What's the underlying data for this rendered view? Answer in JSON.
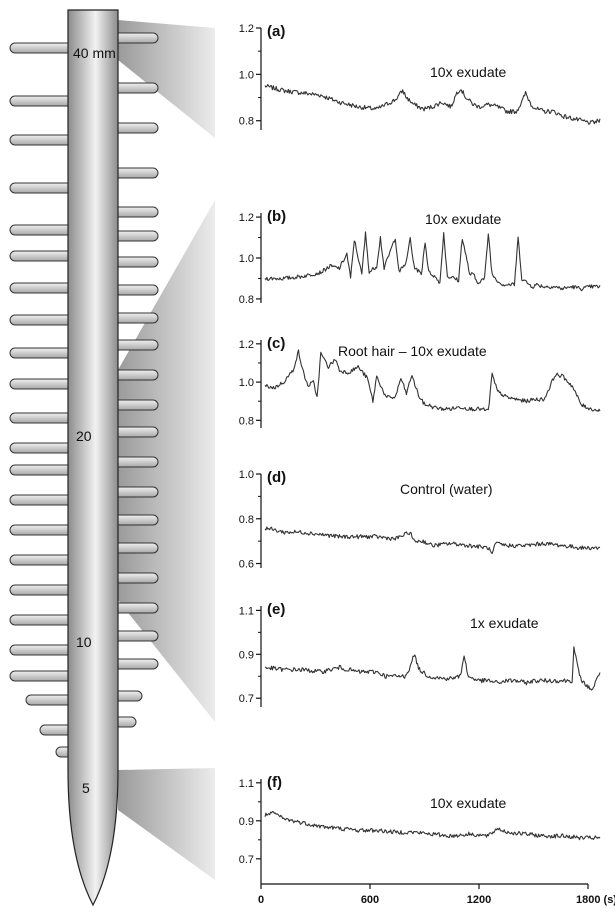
{
  "root_figure": {
    "position_labels": [
      "40 mm",
      "20",
      "10",
      "5"
    ],
    "colors": {
      "root_fill_dark": "#8c8c8c",
      "root_fill_light": "#f2f2f2",
      "wedge": "#c8c8c8",
      "trace": "#333333"
    }
  },
  "chart_data": [
    {
      "type": "line",
      "panel": "(a)",
      "annotation": "10x exudate",
      "xlim": [
        0,
        1800
      ],
      "ylim": [
        0.76,
        1.2
      ],
      "yticks": [
        "1.2",
        "1.0",
        "0.8"
      ],
      "ytick_values": [
        1.2,
        1.0,
        0.8
      ],
      "series": [
        {
          "x": [
            0,
            100,
            200,
            300,
            400,
            500,
            600,
            650,
            700,
            740,
            760,
            800,
            850,
            900,
            950,
            1000,
            1030,
            1050,
            1080,
            1120,
            1150,
            1200,
            1250,
            1300,
            1350,
            1380,
            1400,
            1430,
            1460,
            1500,
            1550,
            1600,
            1650,
            1700,
            1750,
            1800
          ],
          "y": [
            0.95,
            0.93,
            0.92,
            0.91,
            0.88,
            0.86,
            0.85,
            0.87,
            0.89,
            0.93,
            0.9,
            0.87,
            0.85,
            0.86,
            0.88,
            0.86,
            0.92,
            0.94,
            0.9,
            0.87,
            0.86,
            0.87,
            0.86,
            0.84,
            0.84,
            0.88,
            0.92,
            0.87,
            0.85,
            0.84,
            0.84,
            0.82,
            0.81,
            0.8,
            0.79,
            0.8
          ]
        }
      ]
    },
    {
      "type": "line",
      "panel": "(b)",
      "annotation": "10x exudate",
      "xlim": [
        0,
        1800
      ],
      "ylim": [
        0.78,
        1.22
      ],
      "yticks": [
        "1.2",
        "1.0",
        "0.8"
      ],
      "ytick_values": [
        1.2,
        1.0,
        0.8
      ],
      "series": [
        {
          "x": [
            0,
            100,
            200,
            300,
            350,
            400,
            440,
            460,
            480,
            520,
            540,
            560,
            600,
            620,
            640,
            680,
            700,
            720,
            760,
            780,
            800,
            840,
            860,
            880,
            900,
            940,
            960,
            980,
            1020,
            1040,
            1060,
            1100,
            1120,
            1140,
            1180,
            1200,
            1220,
            1260,
            1280,
            1300,
            1340,
            1360,
            1380,
            1420,
            1440,
            1460,
            1500,
            1550,
            1600,
            1650,
            1700,
            1750,
            1800
          ],
          "y": [
            0.9,
            0.9,
            0.91,
            0.93,
            0.96,
            0.95,
            1.02,
            0.9,
            1.09,
            0.92,
            1.12,
            0.93,
            0.96,
            1.1,
            0.95,
            1.05,
            1.1,
            0.93,
            0.98,
            1.1,
            0.96,
            0.92,
            1.08,
            0.93,
            0.92,
            0.88,
            1.12,
            0.91,
            0.9,
            0.89,
            1.1,
            0.92,
            0.92,
            0.88,
            0.9,
            1.12,
            0.92,
            0.88,
            0.87,
            0.87,
            0.87,
            1.1,
            0.9,
            0.87,
            0.86,
            0.87,
            0.86,
            0.86,
            0.85,
            0.86,
            0.85,
            0.86,
            0.86
          ]
        }
      ]
    },
    {
      "type": "line",
      "panel": "(c)",
      "annotation": "Root hair – 10x exudate",
      "xlim": [
        0,
        1800
      ],
      "ylim": [
        0.76,
        1.22
      ],
      "yticks": [
        "1.2",
        "1.0",
        "0.8"
      ],
      "ytick_values": [
        1.2,
        1.0,
        0.8
      ],
      "series": [
        {
          "x": [
            0,
            50,
            100,
            150,
            180,
            200,
            230,
            260,
            280,
            300,
            340,
            380,
            400,
            450,
            500,
            550,
            580,
            600,
            650,
            700,
            730,
            760,
            790,
            800,
            830,
            860,
            880,
            900,
            950,
            1000,
            1050,
            1100,
            1150,
            1200,
            1220,
            1240,
            1250,
            1300,
            1350,
            1400,
            1450,
            1500,
            1560,
            1600,
            1650,
            1700,
            1750,
            1800
          ],
          "y": [
            0.98,
            0.97,
            1.0,
            1.06,
            1.16,
            1.07,
            0.98,
            1.0,
            0.92,
            1.15,
            1.08,
            1.12,
            1.06,
            1.05,
            1.08,
            1.02,
            0.9,
            1.03,
            0.92,
            0.92,
            1.02,
            0.94,
            1.04,
            1.0,
            0.92,
            0.88,
            0.88,
            0.87,
            0.86,
            0.86,
            0.87,
            0.86,
            0.86,
            0.85,
            1.04,
            0.98,
            0.95,
            0.92,
            0.91,
            0.9,
            0.91,
            0.91,
            1.04,
            1.03,
            0.98,
            0.88,
            0.86,
            0.85
          ]
        }
      ]
    },
    {
      "type": "line",
      "panel": "(d)",
      "annotation": "Control (water)",
      "xlim": [
        0,
        1800
      ],
      "ylim": [
        0.58,
        1.0
      ],
      "yticks": [
        "1.0",
        "0.8",
        "0.6"
      ],
      "ytick_values": [
        1.0,
        0.8,
        0.6
      ],
      "series": [
        {
          "x": [
            0,
            100,
            200,
            300,
            400,
            500,
            600,
            700,
            780,
            800,
            850,
            900,
            1000,
            1100,
            1200,
            1220,
            1240,
            1300,
            1400,
            1500,
            1600,
            1700,
            1800
          ],
          "y": [
            0.76,
            0.74,
            0.74,
            0.73,
            0.72,
            0.72,
            0.72,
            0.71,
            0.74,
            0.7,
            0.7,
            0.68,
            0.69,
            0.68,
            0.67,
            0.64,
            0.69,
            0.68,
            0.68,
            0.69,
            0.68,
            0.67,
            0.67
          ]
        }
      ]
    },
    {
      "type": "line",
      "panel": "(e)",
      "annotation": "1x exudate",
      "xlim": [
        0,
        1800
      ],
      "ylim": [
        0.66,
        1.12
      ],
      "yticks": [
        "1.1",
        "0.9",
        "0.7"
      ],
      "ytick_values": [
        1.1,
        0.9,
        0.7
      ],
      "series": [
        {
          "x": [
            0,
            100,
            200,
            300,
            400,
            500,
            600,
            650,
            700,
            750,
            780,
            800,
            830,
            880,
            950,
            1000,
            1050,
            1070,
            1090,
            1150,
            1200,
            1250,
            1300,
            1350,
            1400,
            1450,
            1500,
            1550,
            1600,
            1650,
            1660,
            1690,
            1720,
            1760,
            1800
          ],
          "y": [
            0.84,
            0.83,
            0.83,
            0.82,
            0.84,
            0.82,
            0.82,
            0.8,
            0.8,
            0.8,
            0.84,
            0.9,
            0.83,
            0.8,
            0.79,
            0.79,
            0.8,
            0.9,
            0.8,
            0.78,
            0.78,
            0.77,
            0.78,
            0.78,
            0.77,
            0.78,
            0.78,
            0.78,
            0.78,
            0.78,
            0.93,
            0.8,
            0.76,
            0.74,
            0.82
          ]
        }
      ]
    },
    {
      "type": "line",
      "panel": "(f)",
      "annotation": "10x exudate",
      "xlim": [
        0,
        1800
      ],
      "ylim": [
        0.62,
        1.12
      ],
      "yticks": [
        "1.1",
        "0.9",
        "0.7"
      ],
      "ytick_values": [
        1.1,
        0.9,
        0.7
      ],
      "xticks": [
        0,
        600,
        1200,
        1800
      ],
      "xtick_labels": [
        "0",
        "600",
        "1200",
        "1800 (s)"
      ],
      "series": [
        {
          "x": [
            0,
            50,
            100,
            200,
            300,
            400,
            500,
            600,
            700,
            800,
            900,
            1000,
            1100,
            1200,
            1250,
            1300,
            1400,
            1500,
            1600,
            1700,
            1800
          ],
          "y": [
            0.93,
            0.94,
            0.91,
            0.89,
            0.87,
            0.86,
            0.85,
            0.85,
            0.84,
            0.84,
            0.83,
            0.82,
            0.83,
            0.82,
            0.86,
            0.84,
            0.83,
            0.82,
            0.82,
            0.81,
            0.81
          ]
        }
      ]
    }
  ]
}
